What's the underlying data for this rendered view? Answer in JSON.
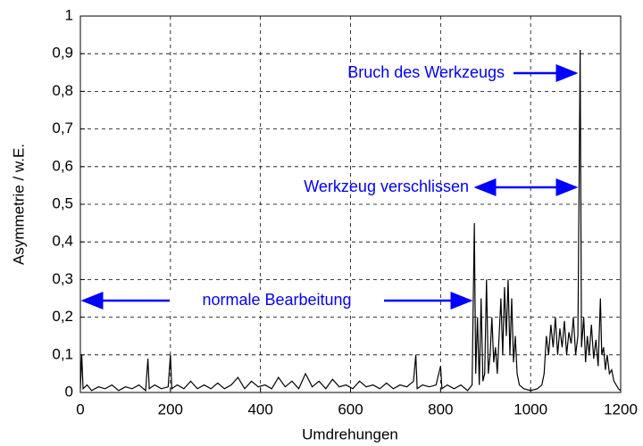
{
  "chart_data": {
    "type": "line",
    "xlabel": "Umdrehungen",
    "ylabel": "Asymmetrie / w.E.",
    "annotations": [
      "Bruch des Werkzeugs",
      "Werkzeug verschlissen",
      "normale Bearbeitung"
    ],
    "x": [
      0,
      3,
      6,
      15,
      25,
      40,
      55,
      70,
      85,
      100,
      115,
      130,
      145,
      150,
      153,
      165,
      180,
      195,
      200,
      203,
      215,
      230,
      245,
      260,
      275,
      290,
      305,
      320,
      335,
      350,
      365,
      380,
      395,
      410,
      425,
      440,
      455,
      470,
      485,
      500,
      515,
      530,
      545,
      560,
      575,
      590,
      605,
      620,
      635,
      650,
      665,
      680,
      695,
      710,
      725,
      740,
      745,
      748,
      760,
      775,
      790,
      800,
      803,
      815,
      830,
      845,
      860,
      870,
      875,
      878,
      882,
      886,
      890,
      894,
      898,
      902,
      906,
      910,
      914,
      918,
      922,
      926,
      930,
      934,
      938,
      942,
      946,
      950,
      954,
      958,
      962,
      966,
      970,
      975,
      985,
      1000,
      1015,
      1025,
      1030,
      1035,
      1040,
      1045,
      1050,
      1055,
      1060,
      1065,
      1070,
      1075,
      1080,
      1085,
      1090,
      1095,
      1100,
      1105,
      1110,
      1113,
      1118,
      1122,
      1126,
      1130,
      1135,
      1140,
      1145,
      1150,
      1155,
      1158,
      1162,
      1166,
      1170,
      1175,
      1180,
      1185,
      1190,
      1195,
      1200
    ],
    "series": [
      {
        "color": "#000000",
        "values": [
          0.01,
          0.1,
          0.01,
          0.02,
          0.005,
          0.015,
          0.01,
          0.02,
          0.005,
          0.015,
          0.01,
          0.02,
          0.005,
          0.09,
          0.01,
          0.02,
          0.01,
          0.015,
          0.1,
          0.01,
          0.02,
          0.01,
          0.03,
          0.01,
          0.02,
          0.01,
          0.025,
          0.01,
          0.02,
          0.04,
          0.01,
          0.03,
          0.015,
          0.02,
          0.01,
          0.04,
          0.015,
          0.03,
          0.01,
          0.05,
          0.015,
          0.03,
          0.01,
          0.035,
          0.015,
          0.02,
          0.01,
          0.03,
          0.015,
          0.02,
          0.01,
          0.025,
          0.01,
          0.02,
          0.015,
          0.03,
          0.1,
          0.01,
          0.02,
          0.015,
          0.02,
          0.07,
          0.01,
          0.02,
          0.01,
          0.02,
          0.005,
          0.02,
          0.45,
          0.05,
          0.2,
          0.02,
          0.25,
          0.03,
          0.05,
          0.3,
          0.05,
          0.1,
          0.2,
          0.08,
          0.12,
          0.05,
          0.15,
          0.25,
          0.1,
          0.28,
          0.15,
          0.3,
          0.1,
          0.25,
          0.08,
          0.15,
          0.05,
          0.02,
          0.01,
          0.005,
          0.01,
          0.02,
          0.05,
          0.15,
          0.1,
          0.18,
          0.12,
          0.2,
          0.1,
          0.17,
          0.12,
          0.19,
          0.1,
          0.16,
          0.13,
          0.2,
          0.1,
          0.15,
          0.91,
          0.12,
          0.2,
          0.08,
          0.15,
          0.1,
          0.18,
          0.09,
          0.14,
          0.07,
          0.25,
          0.1,
          0.12,
          0.06,
          0.1,
          0.05,
          0.06,
          0.03,
          0.02,
          0.01,
          0.005
        ]
      }
    ],
    "xlim": [
      0,
      1200
    ],
    "xticks": [
      0,
      200,
      400,
      600,
      800,
      1000,
      1200
    ],
    "ylim": [
      0,
      1
    ],
    "yticks": [
      0,
      {
        "value": 0.1,
        "label": "0,1"
      },
      {
        "value": 0.2,
        "label": "0,2"
      },
      {
        "value": 0.3,
        "label": "0,3"
      },
      {
        "value": 0.4,
        "label": "0,4"
      },
      {
        "value": 0.5,
        "label": "0,5"
      },
      {
        "value": 0.6,
        "label": "0,6"
      },
      {
        "value": 0.7,
        "label": "0,7"
      },
      {
        "value": 0.8,
        "label": "0,8"
      },
      {
        "value": 0.9,
        "label": "0,9"
      },
      1
    ],
    "grid": true
  }
}
